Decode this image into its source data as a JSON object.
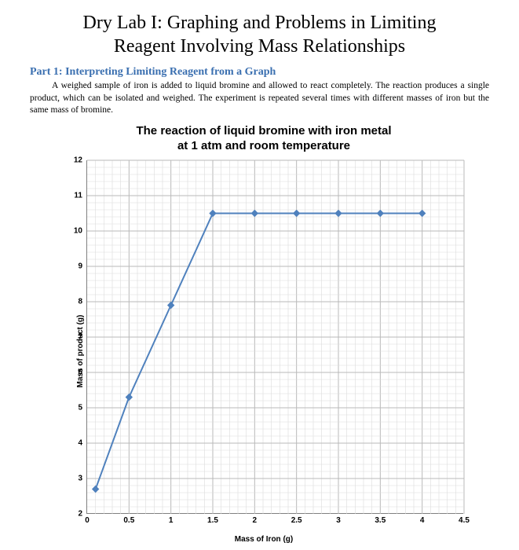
{
  "title_line1": "Dry Lab I:  Graphing and Problems in Limiting",
  "title_line2": "Reagent Involving Mass Relationships",
  "section_heading": "Part 1: Interpreting Limiting Reagent from a Graph",
  "paragraph": "A weighed sample of iron is added to liquid bromine and allowed to react completely.  The reaction produces a single product, which can be isolated and weighed.  The experiment is repeated several times with different masses of iron but the same mass of bromine.",
  "chart": {
    "type": "line",
    "title_line1": "The reaction of liquid bromine with iron metal",
    "title_line2": "at 1 atm and room temperature",
    "x_label": "Mass of Iron (g)",
    "y_label": "Mass of product (g)",
    "title_fontsize": 15,
    "axis_label_fontsize": 10,
    "tick_fontsize": 10,
    "xlim": [
      0,
      4.5
    ],
    "ylim": [
      2,
      12
    ],
    "x_major_step": 0.5,
    "x_minor_per_major": 5,
    "y_major_step": 1,
    "y_minor_per_major": 5,
    "x_ticks": [
      0,
      0.5,
      1,
      1.5,
      2,
      2.5,
      3,
      3.5,
      4,
      4.5
    ],
    "y_ticks": [
      2,
      3,
      4,
      5,
      6,
      7,
      8,
      9,
      10,
      11,
      12
    ],
    "series": {
      "x": [
        0.1,
        0.5,
        1.0,
        1.5,
        2.0,
        2.5,
        3.0,
        3.5,
        4.0
      ],
      "y": [
        2.7,
        5.3,
        7.9,
        10.5,
        10.5,
        10.5,
        10.5,
        10.5,
        10.5
      ]
    },
    "line_color": "#4f81bd",
    "marker_fill": "#4f81bd",
    "marker_size": 4,
    "line_width": 2,
    "major_grid_color": "#b9b9b9",
    "minor_grid_color": "#dcdcdc",
    "axis_color": "#808080",
    "background_color": "#ffffff"
  }
}
